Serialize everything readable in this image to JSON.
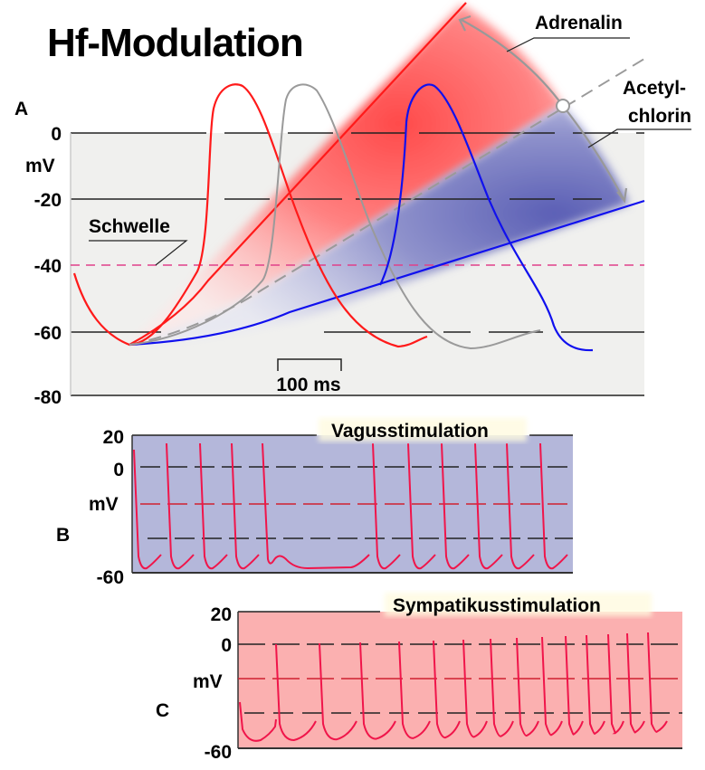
{
  "title": "Hf-Modulation",
  "panel_a": {
    "label": "A",
    "unit": "mV",
    "y_ticks": [
      "0",
      "-20",
      "-40",
      "-60",
      "-80"
    ],
    "threshold_label": "Schwelle",
    "scale_bar_label": "100 ms",
    "adrenalin_label": "Adrenalin",
    "acetylcholin_label_1": "Acetyl-",
    "acetylcholin_label_2": "chlorin",
    "colors": {
      "adrenalin": "#ff1a1a",
      "control": "#9a9a9a",
      "acetylcholin": "#1010ee",
      "threshold": "#e0408a"
    }
  },
  "panel_b": {
    "label": "B",
    "title": "Vagusstimulation",
    "unit": "mV",
    "y_ticks": [
      "20",
      "0",
      "-60"
    ],
    "background": "#b4b7da"
  },
  "panel_c": {
    "label": "C",
    "title": "Sympatikusstimulation",
    "unit": "mV",
    "y_ticks": [
      "20",
      "0",
      "-60"
    ],
    "background": "#fbb0b0"
  }
}
